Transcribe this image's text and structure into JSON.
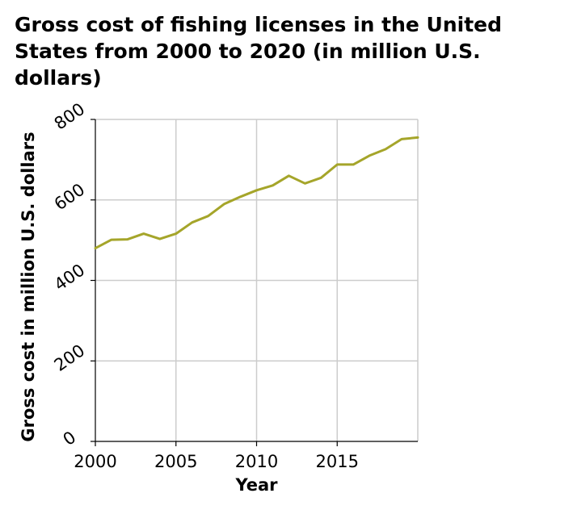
{
  "chart_data": {
    "type": "line",
    "title": "Gross cost of fishing licenses in the United States from 2000 to 2020 (in million U.S. dollars)",
    "xlabel": "Year",
    "ylabel": "Gross cost in million U.S. dollars",
    "xlim": [
      2000,
      2020
    ],
    "ylim": [
      0,
      800
    ],
    "x_ticks": [
      2000,
      2005,
      2010,
      2015
    ],
    "y_ticks": [
      0,
      200,
      400,
      600,
      800
    ],
    "grid": true,
    "line_color": "#a5a52a",
    "series": [
      {
        "x": [
          2000,
          2001,
          2002,
          2003,
          2004,
          2005,
          2006,
          2007,
          2008,
          2009,
          2010,
          2011,
          2012,
          2013,
          2014,
          2015,
          2016,
          2017,
          2018,
          2019,
          2020
        ],
        "values": [
          480,
          501,
          502,
          516,
          503,
          516,
          544,
          560,
          590,
          608,
          624,
          636,
          660,
          641,
          655,
          688,
          688,
          710,
          726,
          751,
          755
        ]
      }
    ]
  }
}
